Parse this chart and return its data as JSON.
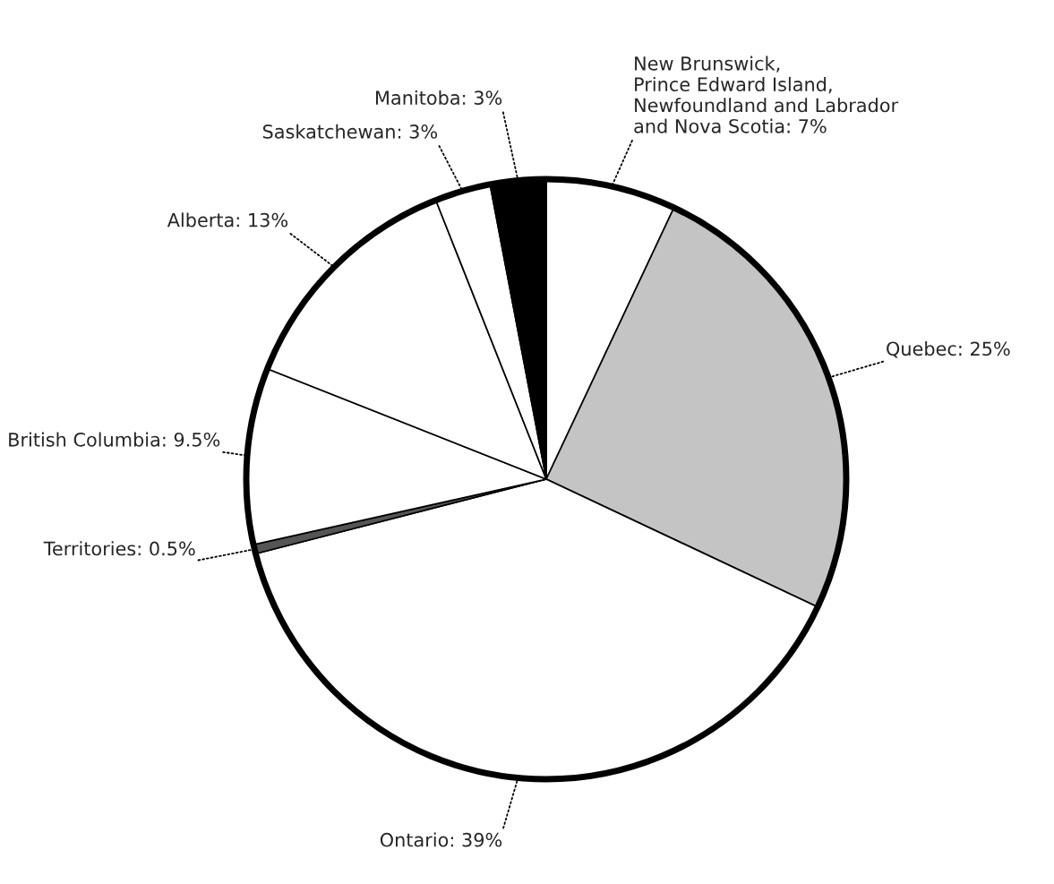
{
  "chart_data": {
    "type": "pie",
    "categories": [
      "New Brunswick,\nPrince Edward Island,\nNewfoundland and Labrador\nand Nova Scotia",
      "Quebec",
      "Ontario",
      "Territories",
      "British Columbia",
      "Alberta",
      "Saskatchewan",
      "Manitoba"
    ],
    "values": [
      7,
      25,
      39,
      0.5,
      9.5,
      13,
      3,
      3
    ],
    "value_labels": [
      "7%",
      "25%",
      "39%",
      "0.5%",
      "9.5%",
      "13%",
      "3%",
      "3%"
    ],
    "colors": [
      "#ffffff",
      "#c4c4c4",
      "#ffffff",
      "#555555",
      "#ffffff",
      "#ffffff",
      "#ffffff",
      "#000000"
    ]
  }
}
